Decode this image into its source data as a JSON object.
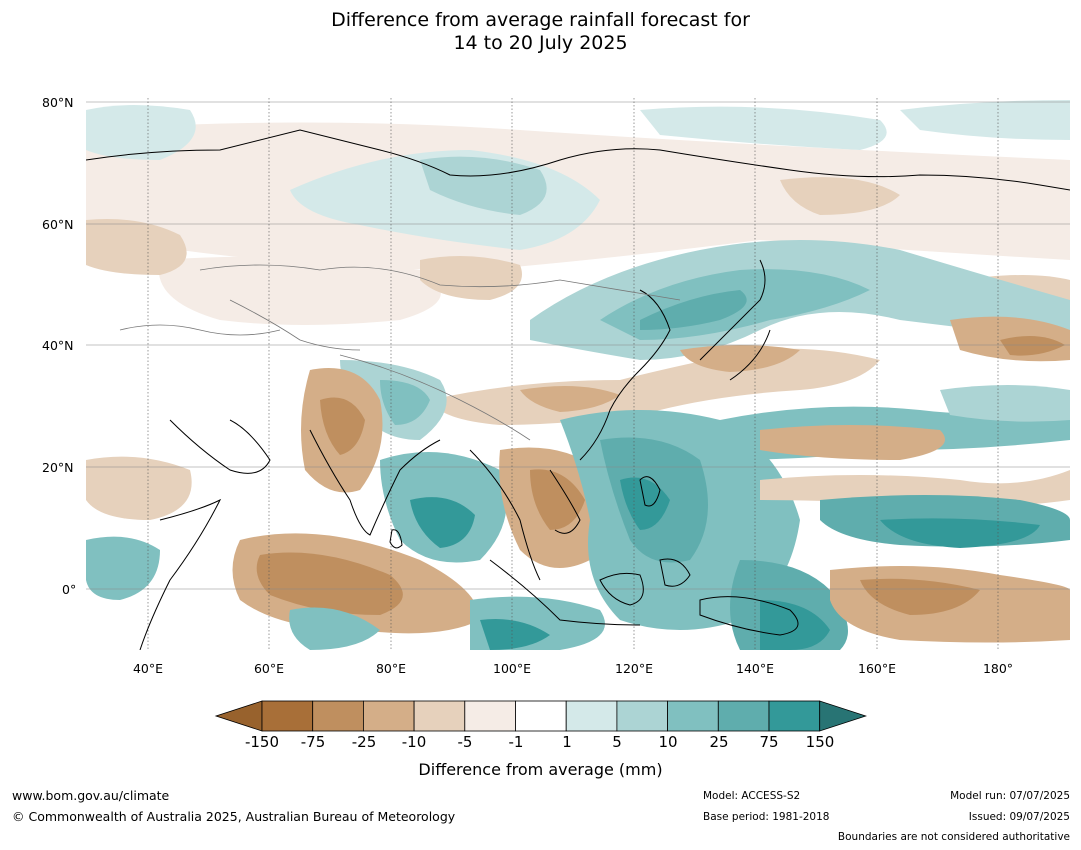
{
  "title": {
    "line1": "Difference from average rainfall forecast for",
    "line2": "14 to 20 July 2025"
  },
  "map": {
    "lat_labels": [
      "80°N",
      "60°N",
      "40°N",
      "20°N",
      "0°"
    ],
    "lon_labels": [
      "40°E",
      "60°E",
      "80°E",
      "100°E",
      "120°E",
      "140°E",
      "160°E",
      "180°"
    ]
  },
  "colorbar": {
    "title": "Difference from average (mm)",
    "tick_labels": [
      "-150",
      "-75",
      "-25",
      "-10",
      "-5",
      "-1",
      "1",
      "5",
      "10",
      "25",
      "75",
      "150"
    ],
    "colors": [
      "#a86f38",
      "#bf8f5f",
      "#d4ae88",
      "#e6d1bc",
      "#f5ece6",
      "#ffffff",
      "#d4e9e9",
      "#acd4d4",
      "#80c0c0",
      "#5fadad",
      "#339999",
      "#2a7d7d"
    ],
    "underflow_color": "#98622d",
    "overflow_color": "#287474"
  },
  "footer": {
    "website": "www.bom.gov.au/climate",
    "copyright": "© Commonwealth of Australia 2025, Australian Bureau of Meteorology",
    "model": "Model: ACCESS-S2",
    "base_period": "Base period: 1981-2018",
    "model_run": "Model run: 07/07/2025",
    "issued": "Issued: 09/07/2025",
    "disclaimer": "Boundaries are not considered authoritative"
  }
}
